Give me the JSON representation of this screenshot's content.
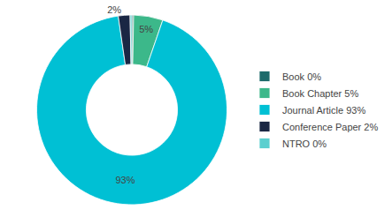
{
  "chart_data": {
    "type": "pie",
    "categories": [
      "Book 0%",
      "Book Chapter 5%",
      "Journal Article 93%",
      "Conference Paper 2%",
      "NTRO 0%"
    ],
    "values": [
      0.3,
      5,
      93,
      2,
      0.3
    ],
    "colors": [
      "#1d6b6b",
      "#3cb88a",
      "#00c0d4",
      "#1a2744",
      "#5bcfcf"
    ],
    "value_labels": [
      null,
      "5%",
      "93%",
      "2%",
      null
    ],
    "data_labels": true,
    "legend": "right"
  }
}
